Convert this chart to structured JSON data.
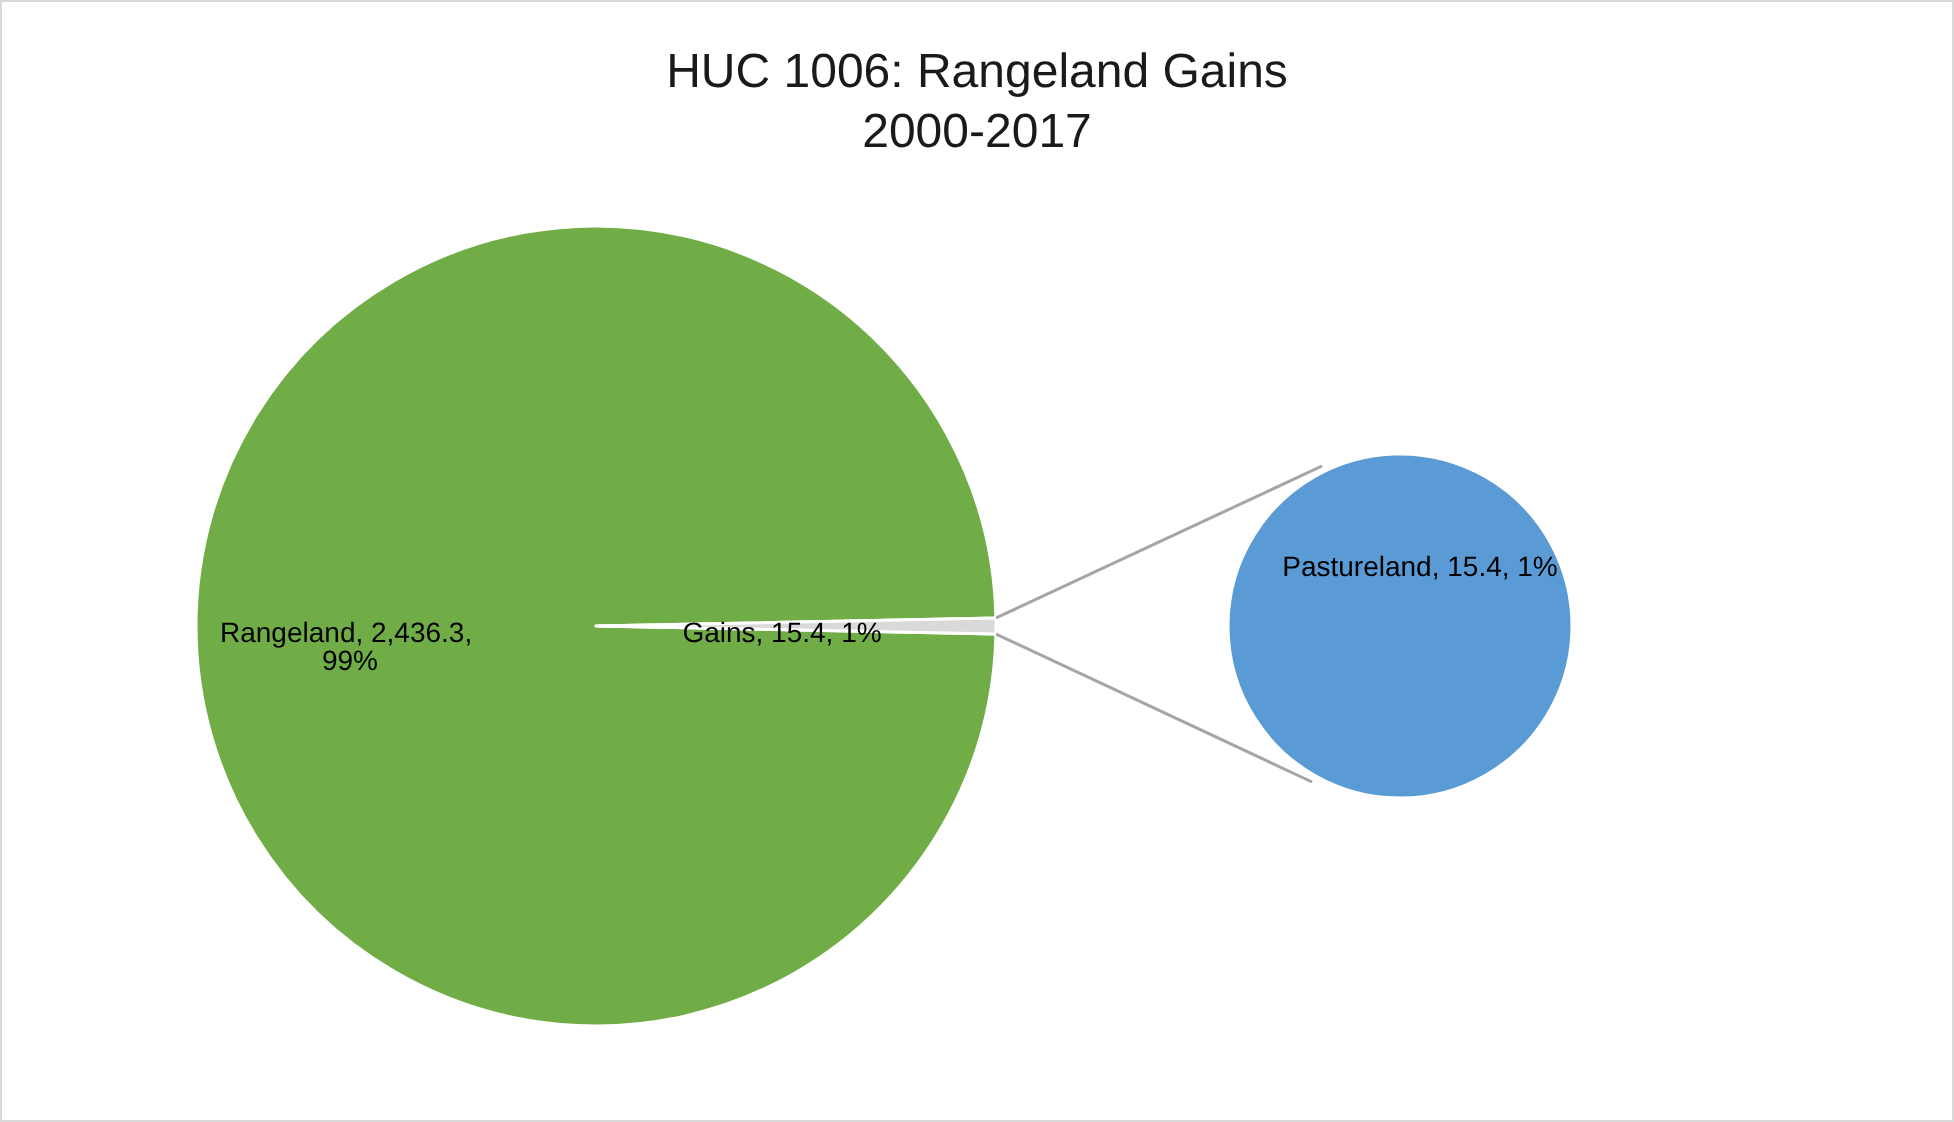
{
  "chart_data": [
    {
      "type": "pie",
      "title": "HUC 1006: Rangeland Gains",
      "subtitle": "2000-2017",
      "categories": [
        "Rangeland",
        "Gains"
      ],
      "values": [
        2436.3,
        15.4
      ],
      "colors": [
        "#70ad47",
        "#d9d9d9"
      ],
      "value_labels": [
        "2,436.3, 99%",
        "15.4, 1%"
      ]
    },
    {
      "type": "pie",
      "categories": [
        "Pastureland"
      ],
      "values": [
        15.4
      ],
      "colors": [
        "#5b9bd5"
      ],
      "value_labels": [
        "15.4, 1%"
      ]
    }
  ]
}
